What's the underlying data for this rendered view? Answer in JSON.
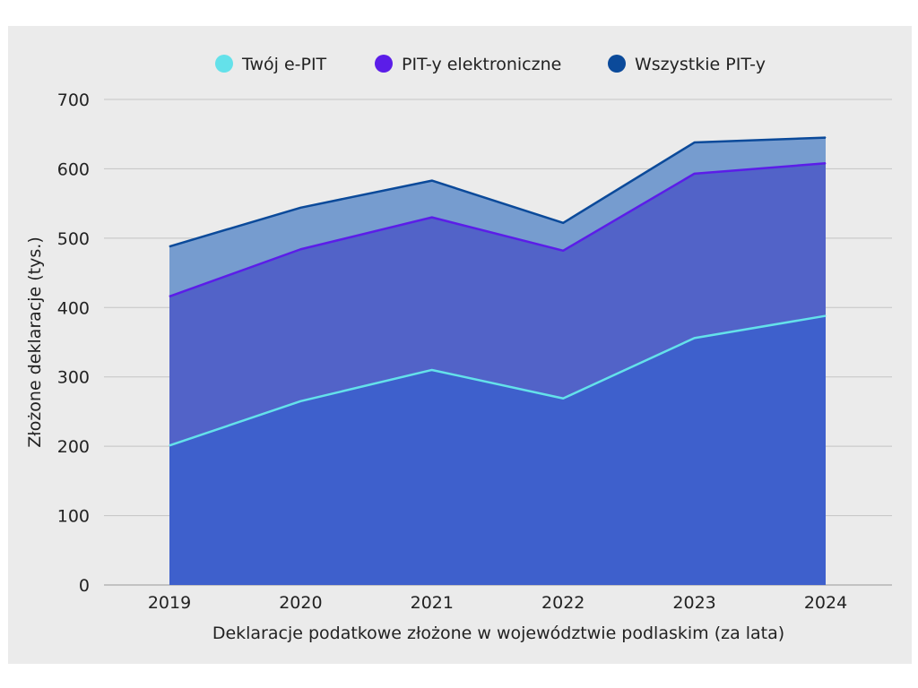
{
  "chart_data": {
    "type": "area",
    "title": "",
    "xlabel": "Deklaracje podatkowe złożone w województwie podlaskim (za lata)",
    "ylabel": "Złożone deklaracje (tys.)",
    "ylim": [
      0,
      700
    ],
    "yticks": [
      0,
      100,
      200,
      300,
      400,
      500,
      600,
      700
    ],
    "x": [
      "2019",
      "2020",
      "2021",
      "2022",
      "2023",
      "2024"
    ],
    "grid": true,
    "legend_position": "top",
    "series": [
      {
        "name": "Wszystkie PIT-y",
        "values": [
          488,
          544,
          583,
          522,
          638,
          645
        ],
        "line_color": "#0b4a9a",
        "fill_color": "#769ccf"
      },
      {
        "name": "PIT-y elektroniczne",
        "values": [
          416,
          484,
          530,
          482,
          593,
          608
        ],
        "line_color": "#5b1de8",
        "fill_color": "#5263c8"
      },
      {
        "name": "Twój e-PIT",
        "values": [
          201,
          265,
          310,
          269,
          356,
          388
        ],
        "line_color": "#64e1ea",
        "fill_color": "#3e60cc"
      }
    ],
    "legend_order": [
      2,
      1,
      0
    ]
  }
}
